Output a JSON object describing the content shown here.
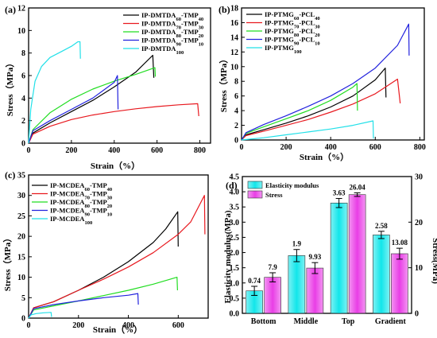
{
  "chart_data": [
    {
      "panel": "(a)",
      "type": "line",
      "xlabel": "Strain（%）",
      "ylabel": "Stress（MPa）",
      "xlim": [
        0,
        850
      ],
      "ylim": [
        0,
        12
      ],
      "xticks": [
        0,
        200,
        400,
        600,
        800
      ],
      "yticks": [
        0,
        2,
        4,
        6,
        8,
        10,
        12
      ],
      "legend_position": "top-right",
      "series": [
        {
          "name": "IP-DMTDA60-TMP40",
          "name_main": "IP-DMTDA",
          "name_sub1": "60",
          "name_mid": "-TMP",
          "name_sub2": "40",
          "color": "#000000",
          "x": [
            0,
            20,
            100,
            200,
            300,
            400,
            500,
            580,
            585
          ],
          "y": [
            0,
            0.9,
            1.8,
            2.8,
            3.8,
            5.0,
            6.3,
            7.8,
            5.8
          ]
        },
        {
          "name": "IP-DMTDA70-TMP30",
          "name_main": "IP-DMTDA",
          "name_sub1": "70",
          "name_mid": "-TMP",
          "name_sub2": "30",
          "color": "#e8191f",
          "x": [
            0,
            20,
            100,
            200,
            300,
            400,
            500,
            600,
            700,
            790,
            795
          ],
          "y": [
            0,
            0.8,
            1.5,
            2.1,
            2.5,
            2.8,
            3.05,
            3.25,
            3.4,
            3.5,
            2.4
          ]
        },
        {
          "name": "IP-DMTDA80-TMP20",
          "name_main": "IP-DMTDA",
          "name_sub1": "80",
          "name_mid": "-TMP",
          "name_sub2": "20",
          "color": "#22dd22",
          "x": [
            0,
            20,
            100,
            200,
            300,
            400,
            500,
            590,
            592
          ],
          "y": [
            0,
            1.2,
            2.7,
            3.9,
            4.8,
            5.5,
            6.1,
            6.7,
            5.9
          ]
        },
        {
          "name": "IP-DMTDA90-TMP10",
          "name_main": "IP-DMTDA",
          "name_sub1": "90",
          "name_mid": "-TMP",
          "name_sub2": "10",
          "color": "#2222dd",
          "x": [
            0,
            20,
            100,
            200,
            300,
            400,
            415,
            418
          ],
          "y": [
            0,
            1.1,
            2.0,
            3.0,
            4.0,
            5.4,
            6.0,
            3.0
          ]
        },
        {
          "name": "IP-DMTDA100",
          "name_main": "IP-DMTDA",
          "name_sub1": "100",
          "name_mid": "",
          "name_sub2": "",
          "color": "#22e0e8",
          "x": [
            0,
            10,
            30,
            60,
            100,
            150,
            200,
            230,
            240,
            242
          ],
          "y": [
            0,
            3.0,
            5.5,
            6.8,
            7.6,
            8.1,
            8.6,
            9.0,
            9.0,
            7.5
          ]
        }
      ]
    },
    {
      "panel": "(b)",
      "type": "line",
      "xlabel": "Strain（%）",
      "ylabel": "Stress（MPa）",
      "xlim": [
        0,
        820
      ],
      "ylim": [
        0,
        18
      ],
      "xticks": [
        0,
        200,
        400,
        600,
        800
      ],
      "yticks": [
        0,
        2,
        4,
        6,
        8,
        10,
        12,
        14,
        16,
        18
      ],
      "legend_position": "top-left",
      "series": [
        {
          "name": "IP-PTMG60-PCL40",
          "name_main": "IP-PTMG",
          "name_sub1": "60",
          "name_mid": "-PCL",
          "name_sub2": "40",
          "color": "#000000",
          "x": [
            0,
            20,
            100,
            200,
            300,
            400,
            500,
            600,
            645,
            648
          ],
          "y": [
            0,
            0.7,
            1.4,
            2.3,
            3.3,
            4.5,
            6.0,
            8.2,
            9.8,
            5.8
          ]
        },
        {
          "name": "IP-PTMG70-PCL30",
          "name_main": "IP-PTMG",
          "name_sub1": "70",
          "name_mid": "-PCL",
          "name_sub2": "30",
          "color": "#e8191f",
          "x": [
            0,
            20,
            100,
            200,
            300,
            400,
            500,
            600,
            700,
            712
          ],
          "y": [
            0,
            0.6,
            1.2,
            2.0,
            2.8,
            3.8,
            4.9,
            6.3,
            8.3,
            5.0
          ]
        },
        {
          "name": "IP-PTMG80-PCL20",
          "name_main": "IP-PTMG",
          "name_sub1": "80",
          "name_mid": "-PCL",
          "name_sub2": "20",
          "color": "#22dd22",
          "x": [
            0,
            20,
            100,
            200,
            300,
            400,
            500,
            518,
            520
          ],
          "y": [
            0,
            0.9,
            1.8,
            2.9,
            4.0,
            5.4,
            7.2,
            7.7,
            4.0
          ]
        },
        {
          "name": "IP-PTMG90-PCL10",
          "name_main": "IP-PTMG",
          "name_sub1": "90",
          "name_mid": "-PCL",
          "name_sub2": "10",
          "color": "#2222dd",
          "x": [
            0,
            20,
            100,
            200,
            300,
            400,
            500,
            600,
            700,
            750,
            752
          ],
          "y": [
            0,
            1.0,
            2.1,
            3.3,
            4.6,
            6.0,
            7.7,
            9.8,
            12.9,
            15.8,
            11.5
          ]
        },
        {
          "name": "IP-PTMG100",
          "name_main": "IP-PTMG",
          "name_sub1": "100",
          "name_mid": "",
          "name_sub2": "",
          "color": "#22e0e8",
          "x": [
            0,
            100,
            200,
            300,
            400,
            500,
            590,
            592
          ],
          "y": [
            0,
            0.3,
            0.7,
            1.1,
            1.5,
            2.0,
            2.6,
            0.2
          ]
        }
      ]
    },
    {
      "panel": "(c)",
      "type": "line",
      "xlabel": "Strain（%）",
      "ylabel": "Stress（MPa）",
      "xlim": [
        0,
        720
      ],
      "ylim": [
        0,
        35
      ],
      "xticks": [
        0,
        200,
        400,
        600
      ],
      "yticks": [
        0,
        5,
        10,
        15,
        20,
        25,
        30,
        35
      ],
      "legend_position": "top-left",
      "series": [
        {
          "name": "IP-MCDEA60-TMP40",
          "name_main": "IP-MCDEA",
          "name_sub1": "60",
          "name_mid": "-TMP",
          "name_sub2": "40",
          "color": "#000000",
          "x": [
            0,
            20,
            100,
            200,
            300,
            400,
            500,
            550,
            598,
            600
          ],
          "y": [
            0,
            2.5,
            4.0,
            6.8,
            10.0,
            13.8,
            18.5,
            21.8,
            26.0,
            17.5
          ]
        },
        {
          "name": "IP-MCDEA70-TMP30",
          "name_main": "IP-MCDEA",
          "name_sub1": "70",
          "name_mid": "-TMP",
          "name_sub2": "30",
          "color": "#e8191f",
          "x": [
            0,
            20,
            100,
            200,
            300,
            400,
            500,
            600,
            650,
            705,
            707
          ],
          "y": [
            0,
            2.5,
            4.0,
            6.8,
            9.5,
            12.5,
            16.0,
            20.5,
            23.5,
            30.0,
            20.5
          ]
        },
        {
          "name": "IP-MCDEA80-TMP20",
          "name_main": "IP-MCDEA",
          "name_sub1": "80",
          "name_mid": "-TMP",
          "name_sub2": "20",
          "color": "#22dd22",
          "x": [
            0,
            20,
            100,
            200,
            300,
            400,
            500,
            595,
            597
          ],
          "y": [
            0,
            2.0,
            3.0,
            4.2,
            5.5,
            6.8,
            8.3,
            10.0,
            6.8
          ]
        },
        {
          "name": "IP-MCDEA90-TMP10",
          "name_main": "IP-MCDEA",
          "name_sub1": "90",
          "name_mid": "-TMP",
          "name_sub2": "10",
          "color": "#2222dd",
          "x": [
            0,
            20,
            100,
            200,
            300,
            400,
            438,
            440
          ],
          "y": [
            0,
            2.3,
            3.3,
            4.2,
            5.0,
            5.6,
            6.0,
            3.3
          ]
        },
        {
          "name": "IP-MCDEA100",
          "name_main": "IP-MCDEA",
          "name_sub1": "100",
          "name_mid": "",
          "name_sub2": "",
          "color": "#22e0e8",
          "x": [
            0,
            10,
            30,
            60,
            90,
            92
          ],
          "y": [
            0,
            0.8,
            1.1,
            1.3,
            1.4,
            0.3
          ]
        }
      ]
    },
    {
      "panel": "(d)",
      "type": "bar",
      "categories": [
        "Bottom",
        "Middle",
        "Top",
        "Gradient"
      ],
      "ylabel_left": "Elasticity modulus(MPa)",
      "ylabel_right": "Stress(MPa)",
      "ylim_left": [
        0,
        4.5
      ],
      "ylim_right": [
        0,
        30
      ],
      "yticks_left": [
        0,
        0.5,
        1.0,
        1.5,
        2.0,
        2.5,
        3.0,
        3.5,
        4.0,
        4.5
      ],
      "yticks_left_labels": [
        "0.0",
        "0.5",
        "1.0",
        "1.5",
        "2.0",
        "2.5",
        "3.0",
        "3.5",
        "4.0",
        "4.5"
      ],
      "yticks_right": [
        0,
        10,
        20,
        30
      ],
      "legend_position": "top-left",
      "series": [
        {
          "name": "Elasticity modulus",
          "axis": "left",
          "color": "#12e6ea",
          "values": [
            0.74,
            1.9,
            3.63,
            2.58
          ],
          "labels": [
            "0.74",
            "1.9",
            "3.63",
            "2.58"
          ],
          "errors": [
            0.15,
            0.2,
            0.15,
            0.12
          ]
        },
        {
          "name": "Stress",
          "axis": "right",
          "color": "#e93ee6",
          "values": [
            7.9,
            9.93,
            26.04,
            13.08
          ],
          "labels": [
            "7.9",
            "9.93",
            "26.04",
            "13.08"
          ],
          "errors": [
            1.0,
            1.2,
            0.4,
            1.2
          ]
        }
      ]
    }
  ]
}
